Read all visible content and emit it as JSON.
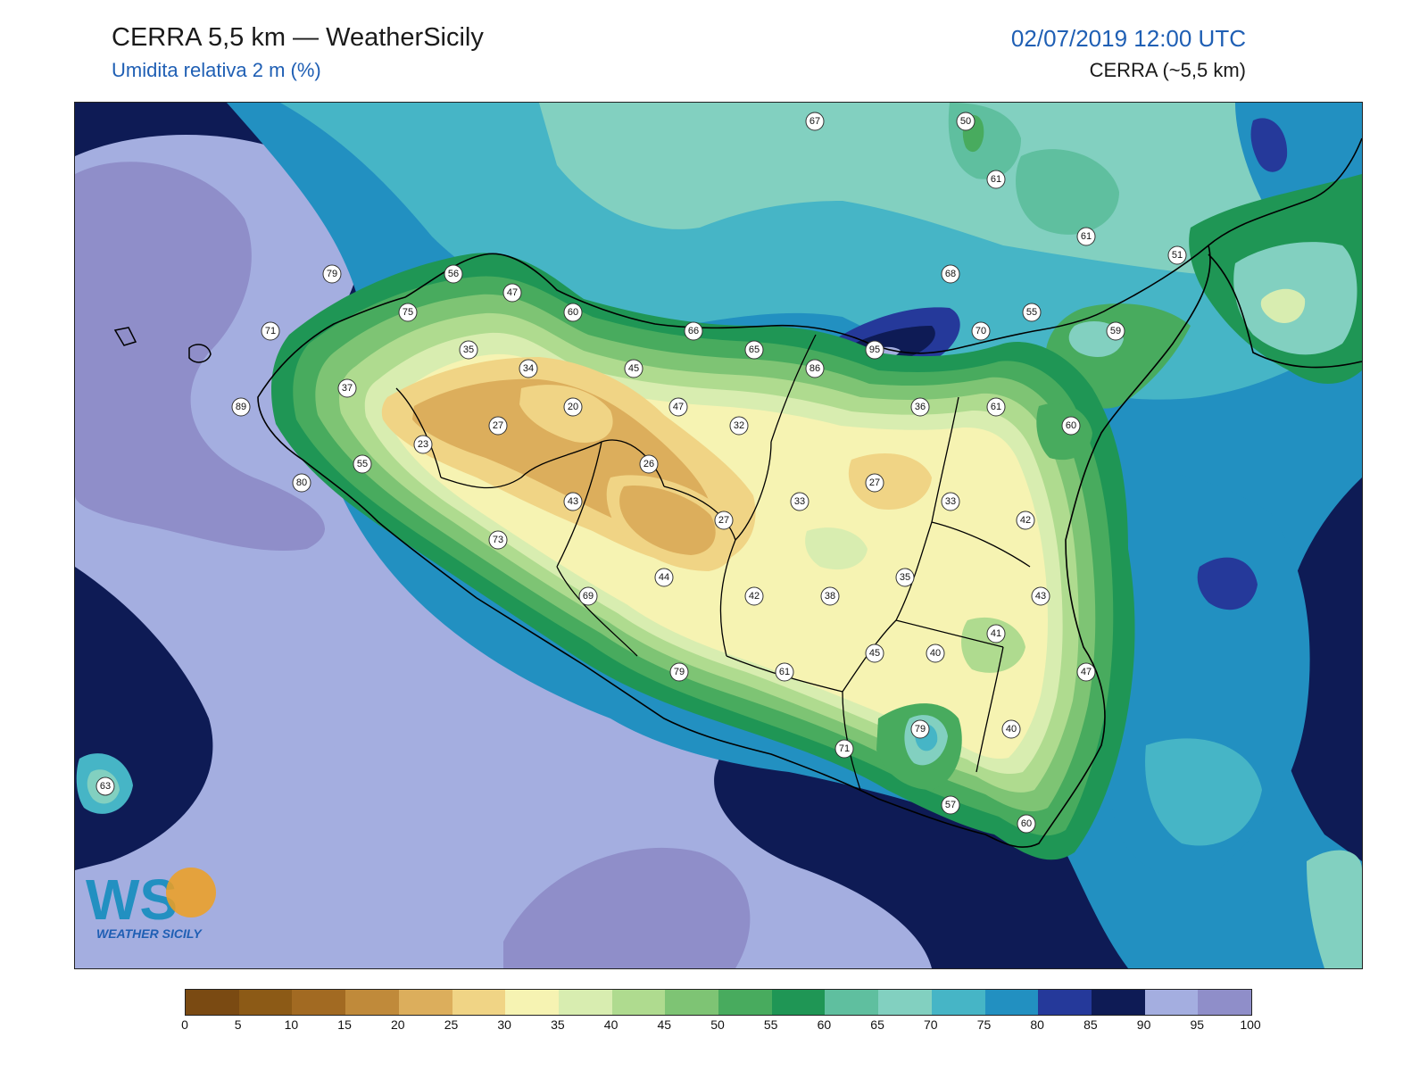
{
  "header": {
    "title": "CERRA 5,5 km — WeatherSicily",
    "subtitle": "Umidita relativa 2 m (%)",
    "datetime": "02/07/2019 12:00 UTC",
    "model": "CERRA (~5,5 km)"
  },
  "logo": {
    "text": "WEATHER SICILY",
    "mark": "WS"
  },
  "colorbar": {
    "colors": [
      "#7a4a12",
      "#8c5a16",
      "#a26a22",
      "#c08a3a",
      "#dcae5c",
      "#f0d485",
      "#f6f3b2",
      "#d8edb0",
      "#afdb8f",
      "#7ec474",
      "#48ab5e",
      "#1f9655",
      "#5fbf9f",
      "#82d0c0",
      "#46b5c6",
      "#2290c1",
      "#25399a",
      "#0e1b55",
      "#a4aee0",
      "#8f8ec9"
    ],
    "tick_labels": [
      "0",
      "5",
      "10",
      "15",
      "20",
      "25",
      "30",
      "35",
      "40",
      "45",
      "50",
      "55",
      "60",
      "65",
      "70",
      "75",
      "80",
      "85",
      "90",
      "95",
      "100"
    ]
  },
  "stations": [
    {
      "v": "67"
    },
    {
      "v": "50"
    },
    {
      "v": "61"
    },
    {
      "v": "61"
    },
    {
      "v": "51"
    },
    {
      "v": "79"
    },
    {
      "v": "56"
    },
    {
      "v": "47"
    },
    {
      "v": "75"
    },
    {
      "v": "60"
    },
    {
      "v": "71"
    },
    {
      "v": "68"
    },
    {
      "v": "55"
    },
    {
      "v": "66"
    },
    {
      "v": "70"
    },
    {
      "v": "59"
    },
    {
      "v": "35"
    },
    {
      "v": "65"
    },
    {
      "v": "95"
    },
    {
      "v": "34"
    },
    {
      "v": "45"
    },
    {
      "v": "86"
    },
    {
      "v": "37"
    },
    {
      "v": "89"
    },
    {
      "v": "20"
    },
    {
      "v": "47"
    },
    {
      "v": "36"
    },
    {
      "v": "61"
    },
    {
      "v": "27"
    },
    {
      "v": "32"
    },
    {
      "v": "60"
    },
    {
      "v": "23"
    },
    {
      "v": "26"
    },
    {
      "v": "55"
    },
    {
      "v": "27"
    },
    {
      "v": "80"
    },
    {
      "v": "43"
    },
    {
      "v": "33"
    },
    {
      "v": "33"
    },
    {
      "v": "27"
    },
    {
      "v": "42"
    },
    {
      "v": "73"
    },
    {
      "v": "35"
    },
    {
      "v": "44"
    },
    {
      "v": "69"
    },
    {
      "v": "42"
    },
    {
      "v": "38"
    },
    {
      "v": "43"
    },
    {
      "v": "41"
    },
    {
      "v": "45"
    },
    {
      "v": "40"
    },
    {
      "v": "79"
    },
    {
      "v": "61"
    },
    {
      "v": "47"
    },
    {
      "v": "79"
    },
    {
      "v": "40"
    },
    {
      "v": "71"
    },
    {
      "v": "63"
    },
    {
      "v": "57"
    },
    {
      "v": "60"
    }
  ]
}
